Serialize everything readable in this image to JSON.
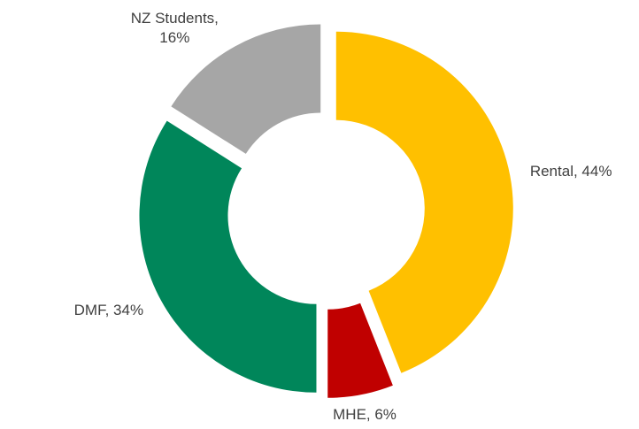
{
  "chart_data": {
    "type": "donut",
    "categories": [
      "Rental",
      "MHE",
      "DMF",
      "NZ Students"
    ],
    "values": [
      44,
      6,
      34,
      16
    ],
    "value_labels": [
      "Rental, 44%",
      "MHE, 6%",
      "DMF, 34%",
      "NZ Students, 16%"
    ],
    "colors": [
      "#ffc000",
      "#c00000",
      "#00865a",
      "#a6a6a6"
    ]
  }
}
